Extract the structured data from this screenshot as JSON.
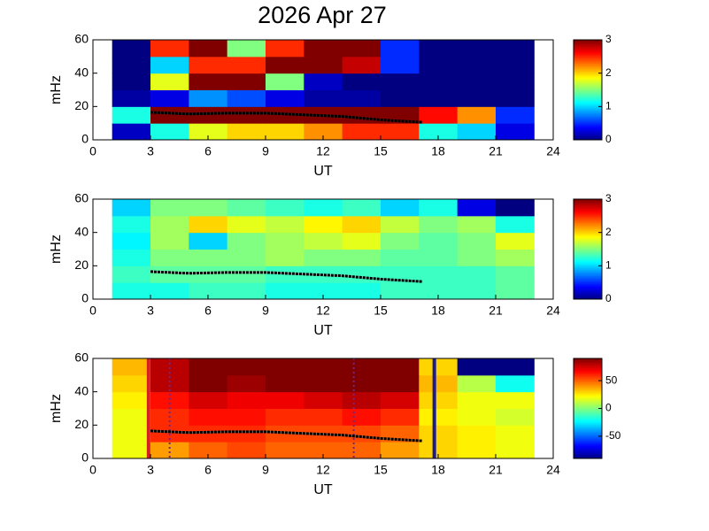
{
  "chart_data": [
    {
      "type": "heatmap",
      "title": "2026 Apr 27",
      "xlabel": "UT",
      "ylabel": "mHz",
      "xlim": [
        0,
        24
      ],
      "xticks": [
        0,
        3,
        6,
        9,
        12,
        15,
        18,
        21,
        24
      ],
      "ylim": [
        0,
        60
      ],
      "yticks": [
        0,
        20,
        40,
        60
      ],
      "x_edges": [
        1,
        3,
        5,
        7,
        9,
        11,
        13,
        15,
        17,
        19,
        21,
        23
      ],
      "y_edges": [
        0,
        10,
        20,
        30,
        40,
        50,
        60
      ],
      "z": [
        [
          0.2,
          1.2,
          1.8,
          2,
          2,
          2.2,
          2.5,
          2.5,
          1.2,
          1,
          0.3
        ],
        [
          1.2,
          3,
          3,
          3,
          3,
          3,
          3,
          3,
          2.6,
          2.2,
          0.5
        ],
        [
          0.1,
          0.3,
          0.8,
          0.6,
          0.3,
          0.1,
          0.1,
          0,
          0,
          0,
          0
        ],
        [
          0,
          1.8,
          3,
          3,
          1.5,
          0.2,
          0,
          0,
          0,
          0,
          0
        ],
        [
          0,
          1,
          2.5,
          2.5,
          3,
          3,
          2.8,
          0.5,
          0,
          0,
          0
        ],
        [
          0,
          2.5,
          3,
          1.5,
          2.5,
          3,
          3,
          0.5,
          0,
          0,
          0
        ]
      ],
      "clim": [
        0,
        3
      ],
      "cticks": [
        0,
        1,
        2,
        3
      ],
      "trace": {
        "x": [
          3,
          5,
          7,
          9,
          11,
          13,
          15,
          17.2
        ],
        "y": [
          16.5,
          15.5,
          16,
          16,
          15,
          14,
          12,
          10.5
        ],
        "color": "#000000"
      },
      "markers": []
    },
    {
      "type": "heatmap",
      "xlabel": "UT",
      "ylabel": "mHz",
      "xlim": [
        0,
        24
      ],
      "xticks": [
        0,
        3,
        6,
        9,
        12,
        15,
        18,
        21,
        24
      ],
      "ylim": [
        0,
        60
      ],
      "yticks": [
        0,
        20,
        40,
        60
      ],
      "x_edges": [
        1,
        3,
        5,
        7,
        9,
        11,
        13,
        15,
        17,
        19,
        21,
        23
      ],
      "y_edges": [
        0,
        10,
        20,
        30,
        40,
        50,
        60
      ],
      "z": [
        [
          1.2,
          1.2,
          1.3,
          1.3,
          1.2,
          1.2,
          1.2,
          1.3,
          1.3,
          1.3,
          1.4
        ],
        [
          1.3,
          1.4,
          1.4,
          1.4,
          1.3,
          1.3,
          1.3,
          1.3,
          1.3,
          1.3,
          1.4
        ],
        [
          1.2,
          1.5,
          1.5,
          1.5,
          1.6,
          1.5,
          1.5,
          1.4,
          1.4,
          1.5,
          1.6
        ],
        [
          1.1,
          1.6,
          1,
          1.5,
          1.6,
          1.7,
          1.8,
          1.5,
          1.4,
          1.5,
          1.8
        ],
        [
          1.2,
          1.6,
          2,
          1.8,
          1.7,
          1.9,
          2,
          1.7,
          1.5,
          1.6,
          1.2
        ],
        [
          1,
          1.5,
          1.5,
          1.4,
          1.3,
          1.2,
          1.3,
          1,
          1.2,
          0.3,
          0
        ]
      ],
      "clim": [
        0,
        3
      ],
      "cticks": [
        0,
        1,
        2,
        3
      ],
      "trace": {
        "x": [
          3,
          5,
          7,
          9,
          11,
          13,
          15,
          17.2
        ],
        "y": [
          16.5,
          15.5,
          16,
          16,
          15,
          14,
          12,
          10.5
        ],
        "color": "#000000"
      },
      "markers": []
    },
    {
      "type": "heatmap",
      "xlabel": "UT",
      "ylabel": "mHz",
      "xlim": [
        0,
        24
      ],
      "xticks": [
        0,
        3,
        6,
        9,
        12,
        15,
        18,
        21,
        24
      ],
      "ylim": [
        0,
        60
      ],
      "yticks": [
        0,
        20,
        40,
        60
      ],
      "x_edges": [
        1,
        3,
        5,
        7,
        9,
        11,
        13,
        15,
        17,
        19,
        21,
        23
      ],
      "y_edges": [
        0,
        10,
        20,
        30,
        40,
        50,
        60
      ],
      "z": [
        [
          20,
          40,
          50,
          55,
          50,
          50,
          50,
          40,
          30,
          25,
          20
        ],
        [
          20,
          60,
          60,
          60,
          55,
          55,
          55,
          50,
          30,
          25,
          20
        ],
        [
          20,
          60,
          65,
          65,
          60,
          60,
          65,
          60,
          25,
          20,
          15
        ],
        [
          25,
          65,
          75,
          70,
          70,
          75,
          80,
          75,
          30,
          20,
          20
        ],
        [
          30,
          80,
          90,
          85,
          90,
          90,
          90,
          90,
          35,
          10,
          -20
        ],
        [
          35,
          80,
          90,
          90,
          90,
          90,
          90,
          90,
          30,
          -90,
          -90
        ]
      ],
      "clim": [
        -90,
        90
      ],
      "cticks": [
        -50,
        0,
        50
      ],
      "trace": {
        "x": [
          3,
          5,
          7,
          9,
          11,
          13,
          15,
          17.2
        ],
        "y": [
          16.5,
          15.5,
          16,
          16,
          15,
          14,
          12,
          10.5
        ],
        "color": "#000000"
      },
      "markers": [
        {
          "x": 2.9,
          "color": "#d62020",
          "dash": false
        },
        {
          "x": 4.0,
          "color": "#6a2a8a",
          "dash": true
        },
        {
          "x": 13.6,
          "color": "#6a2a8a",
          "dash": true
        },
        {
          "x": 17.8,
          "color": "#1a1a9a",
          "dash": false
        }
      ]
    }
  ]
}
